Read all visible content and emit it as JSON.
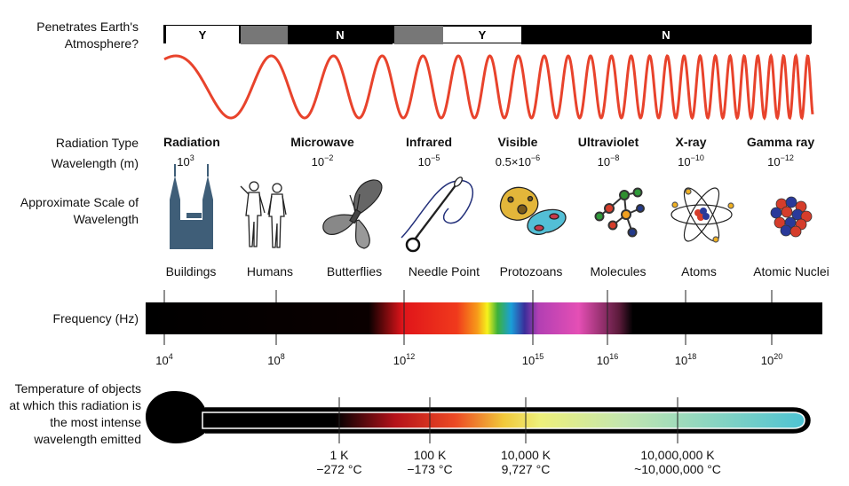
{
  "labels": {
    "atmosphere": "Penetrates Earth's Atmosphere?",
    "radiation_type": "Radiation Type",
    "wavelength": "Wavelength (m)",
    "scale": "Approximate Scale of Wavelength",
    "frequency": "Frequency (Hz)",
    "temperature": "Temperature of objects at which this radiation is the most intense wavelength emitted"
  },
  "atmosphere_bar": [
    {
      "text": "Y",
      "fill": "#ffffff"
    },
    {
      "text": "",
      "fill": "#777777"
    },
    {
      "text": "N",
      "fill": "#000000"
    },
    {
      "text": "",
      "fill": "#777777"
    },
    {
      "text": "Y",
      "fill": "#ffffff"
    },
    {
      "text": "N",
      "fill": "#000000"
    }
  ],
  "radiation": [
    {
      "type": "Radiation",
      "wl_base": "10",
      "wl_exp": "3"
    },
    {
      "type": "Microwave",
      "wl_base": "10",
      "wl_exp": "−2"
    },
    {
      "type": "Infrared",
      "wl_base": "10",
      "wl_exp": "−5"
    },
    {
      "type": "Visible",
      "wl_base": "0.5×10",
      "wl_exp": "−6"
    },
    {
      "type": "Ultraviolet",
      "wl_base": "10",
      "wl_exp": "−8"
    },
    {
      "type": "X-ray",
      "wl_base": "10",
      "wl_exp": "−10"
    },
    {
      "type": "Gamma ray",
      "wl_base": "10",
      "wl_exp": "−12"
    }
  ],
  "scale_objects": [
    {
      "label": "Buildings",
      "icon": "buildings-icon"
    },
    {
      "label": "Humans",
      "icon": "humans-icon"
    },
    {
      "label": "Butterflies",
      "icon": "butterfly-icon"
    },
    {
      "label": "Needle Point",
      "icon": "needle-icon"
    },
    {
      "label": "Protozoans",
      "icon": "protozoan-icon"
    },
    {
      "label": "Molecules",
      "icon": "molecule-icon"
    },
    {
      "label": "Atoms",
      "icon": "atom-icon"
    },
    {
      "label": "Atomic Nuclei",
      "icon": "nucleus-icon"
    }
  ],
  "frequency_ticks": [
    {
      "base": "10",
      "exp": "4"
    },
    {
      "base": "10",
      "exp": "8"
    },
    {
      "base": "10",
      "exp": "12"
    },
    {
      "base": "10",
      "exp": "15"
    },
    {
      "base": "10",
      "exp": "16"
    },
    {
      "base": "10",
      "exp": "18"
    },
    {
      "base": "10",
      "exp": "20"
    }
  ],
  "temperatures": [
    {
      "k": "1 K",
      "c": "−272 °C"
    },
    {
      "k": "100 K",
      "c": "−173 °C"
    },
    {
      "k": "10,000 K",
      "c": "9,727 °C"
    },
    {
      "k": "10,000,000 K",
      "c": "~10,000,000 °C"
    }
  ],
  "colors": {
    "wave": "#e8432c",
    "thermo_fill_end": "#4ec3d3"
  }
}
